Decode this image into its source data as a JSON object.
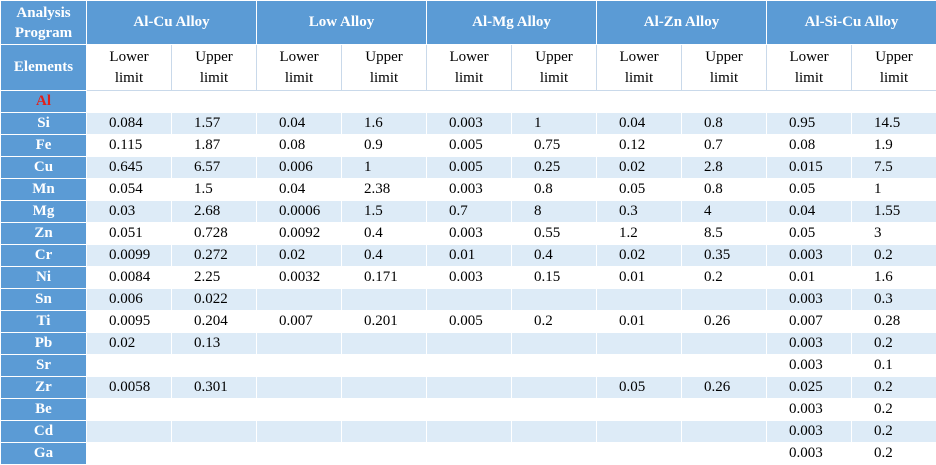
{
  "header": {
    "corner": "Analysis Program",
    "elements_label": "Elements",
    "alloys": [
      "Al-Cu Alloy",
      "Low Alloy",
      "Al-Mg Alloy",
      "Al-Zn Alloy",
      "Al-Si-Cu Alloy"
    ],
    "limits": [
      "Lower limit",
      "Upper limit",
      "Lower limit",
      "Upper limit",
      "Lower limit",
      "Upper limit",
      "Lower limit",
      "Upper limit",
      "Lower limit",
      "Upper limit"
    ]
  },
  "table": {
    "rows": [
      {
        "element": "Al",
        "values": [
          null,
          null,
          null,
          null,
          null,
          null,
          null,
          null,
          null,
          null
        ]
      },
      {
        "element": "Si",
        "values": [
          "0.084",
          "1.57",
          "0.04",
          "1.6",
          "0.003",
          "1",
          "0.04",
          "0.8",
          "0.95",
          "14.5"
        ]
      },
      {
        "element": "Fe",
        "values": [
          "0.115",
          "1.87",
          "0.08",
          "0.9",
          "0.005",
          "0.75",
          "0.12",
          "0.7",
          "0.08",
          "1.9"
        ]
      },
      {
        "element": "Cu",
        "values": [
          "0.645",
          "6.57",
          "0.006",
          "1",
          "0.005",
          "0.25",
          "0.02",
          "2.8",
          "0.015",
          "7.5"
        ]
      },
      {
        "element": "Mn",
        "values": [
          "0.054",
          "1.5",
          "0.04",
          "2.38",
          "0.003",
          "0.8",
          "0.05",
          "0.8",
          "0.05",
          "1"
        ]
      },
      {
        "element": "Mg",
        "values": [
          "0.03",
          "2.68",
          "0.0006",
          "1.5",
          "0.7",
          "8",
          "0.3",
          "4",
          "0.04",
          "1.55"
        ]
      },
      {
        "element": "Zn",
        "values": [
          "0.051",
          "0.728",
          "0.0092",
          "0.4",
          "0.003",
          "0.55",
          "1.2",
          "8.5",
          "0.05",
          "3"
        ]
      },
      {
        "element": "Cr",
        "values": [
          "0.0099",
          "0.272",
          "0.02",
          "0.4",
          "0.01",
          "0.4",
          "0.02",
          "0.35",
          "0.003",
          "0.2"
        ]
      },
      {
        "element": "Ni",
        "values": [
          "0.0084",
          "2.25",
          "0.0032",
          "0.171",
          "0.003",
          "0.15",
          "0.01",
          "0.2",
          "0.01",
          "1.6"
        ]
      },
      {
        "element": "Sn",
        "values": [
          "0.006",
          "0.022",
          null,
          null,
          null,
          null,
          null,
          null,
          "0.003",
          "0.3"
        ]
      },
      {
        "element": "Ti",
        "values": [
          "0.0095",
          "0.204",
          "0.007",
          "0.201",
          "0.005",
          "0.2",
          "0.01",
          "0.26",
          "0.007",
          "0.28"
        ]
      },
      {
        "element": "Pb",
        "values": [
          "0.02",
          "0.13",
          null,
          null,
          null,
          null,
          null,
          null,
          "0.003",
          "0.2"
        ]
      },
      {
        "element": "Sr",
        "values": [
          null,
          null,
          null,
          null,
          null,
          null,
          null,
          null,
          "0.003",
          "0.1"
        ]
      },
      {
        "element": "Zr",
        "values": [
          "0.0058",
          "0.301",
          null,
          null,
          null,
          null,
          "0.05",
          "0.26",
          "0.025",
          "0.2"
        ]
      },
      {
        "element": "Be",
        "values": [
          null,
          null,
          null,
          null,
          null,
          null,
          null,
          null,
          "0.003",
          "0.2"
        ]
      },
      {
        "element": "Cd",
        "values": [
          null,
          null,
          null,
          null,
          null,
          null,
          null,
          null,
          "0.003",
          "0.2"
        ]
      },
      {
        "element": "Ga",
        "values": [
          null,
          null,
          null,
          null,
          null,
          null,
          null,
          null,
          "0.003",
          "0.2"
        ]
      }
    ]
  }
}
